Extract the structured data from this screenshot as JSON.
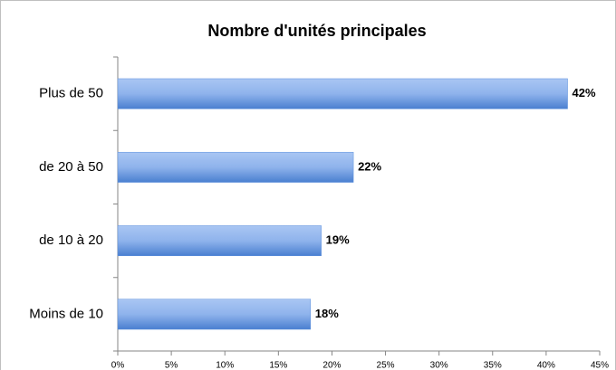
{
  "chart_data": {
    "type": "bar",
    "orientation": "horizontal",
    "title": "Nombre d'unités principales",
    "categories": [
      "Plus de 50",
      "de 20 à 50",
      "de 10 à 20",
      "Moins de 10"
    ],
    "values": [
      42,
      22,
      19,
      18
    ],
    "value_labels": [
      "42%",
      "22%",
      "19%",
      "18%"
    ],
    "color": "#5b8fdc",
    "xlim": [
      0,
      45
    ],
    "xticks": [
      {
        "value": 0,
        "label": "0%"
      },
      {
        "value": 5,
        "label": "5%"
      },
      {
        "value": 10,
        "label": "10%"
      },
      {
        "value": 15,
        "label": "15%"
      },
      {
        "value": 20,
        "label": "20%"
      },
      {
        "value": 25,
        "label": "25%"
      },
      {
        "value": 30,
        "label": "30%"
      },
      {
        "value": 35,
        "label": "35%"
      },
      {
        "value": 40,
        "label": "40%"
      },
      {
        "value": 45,
        "label": "45%"
      }
    ],
    "grid": false
  }
}
